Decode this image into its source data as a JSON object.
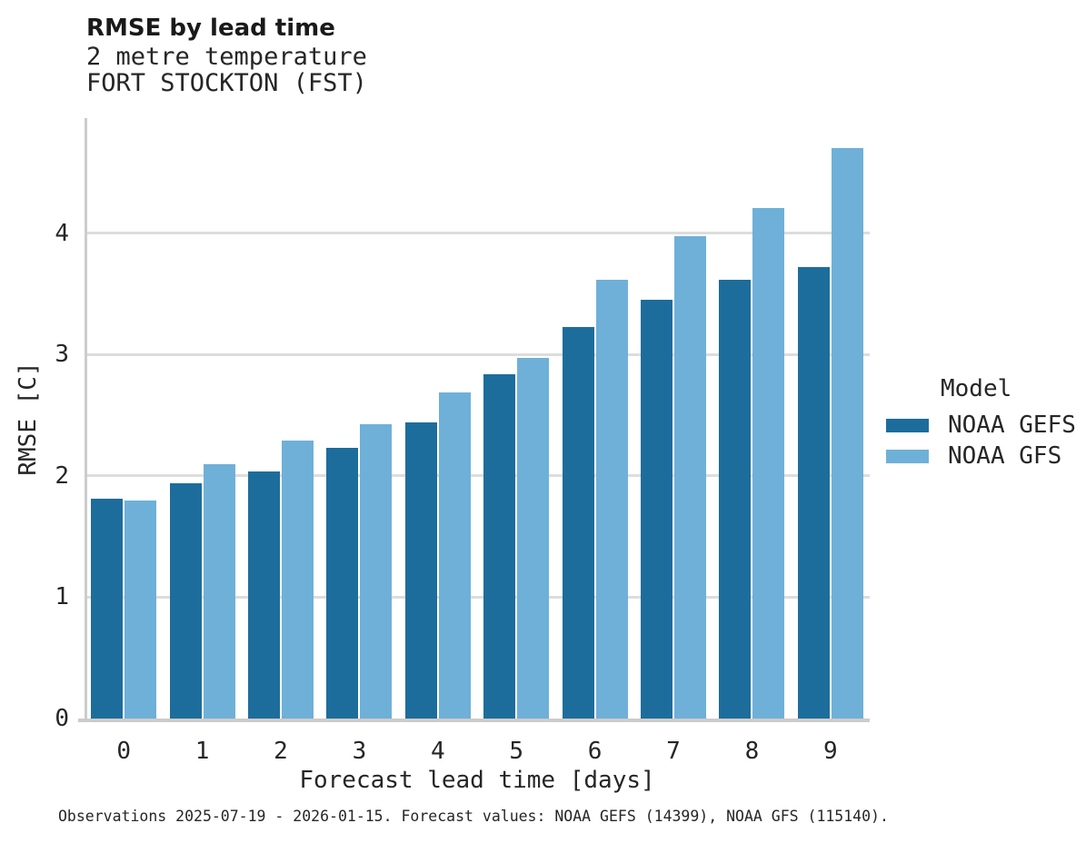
{
  "header": {
    "title": "RMSE by lead time",
    "subtitle_line1": "2 metre temperature",
    "subtitle_line2": "FORT STOCKTON (FST)"
  },
  "chart_data": {
    "type": "bar",
    "title": "RMSE by lead time",
    "subtitle": [
      "2 metre temperature",
      "FORT STOCKTON (FST)"
    ],
    "categories": [
      "0",
      "1",
      "2",
      "3",
      "4",
      "5",
      "6",
      "7",
      "8",
      "9"
    ],
    "series": [
      {
        "name": "NOAA GEFS",
        "color": "#1d6d9c",
        "values": [
          1.81,
          1.94,
          2.04,
          2.23,
          2.44,
          2.84,
          3.23,
          3.45,
          3.62,
          3.72
        ]
      },
      {
        "name": "NOAA GFS",
        "color": "#6fb0d8",
        "values": [
          1.8,
          2.1,
          2.29,
          2.43,
          2.69,
          2.97,
          3.62,
          3.98,
          4.21,
          4.7
        ]
      }
    ],
    "xlabel": "Forecast lead time [days]",
    "ylabel": "RMSE [C]",
    "ylim": [
      0,
      4.95
    ],
    "yticks": [
      0,
      1,
      2,
      3,
      4
    ],
    "grid": "horizontal-only",
    "legend_title": "Model",
    "legend_position": "right-center",
    "bar_grouping": "grouped-pairs"
  },
  "legend": {
    "title": "Model",
    "items": [
      {
        "label": "NOAA GEFS",
        "color": "#1d6d9c"
      },
      {
        "label": "NOAA GFS",
        "color": "#6fb0d8"
      }
    ]
  },
  "caption": "Observations 2025-07-19 - 2026-01-15. Forecast values: NOAA GEFS (14399), NOAA GFS (115140).",
  "colors": {
    "background": "#ffffff",
    "grid": "#dddddd",
    "spine": "#cccccc",
    "text": "#262626",
    "title": "#1a1a1a"
  }
}
